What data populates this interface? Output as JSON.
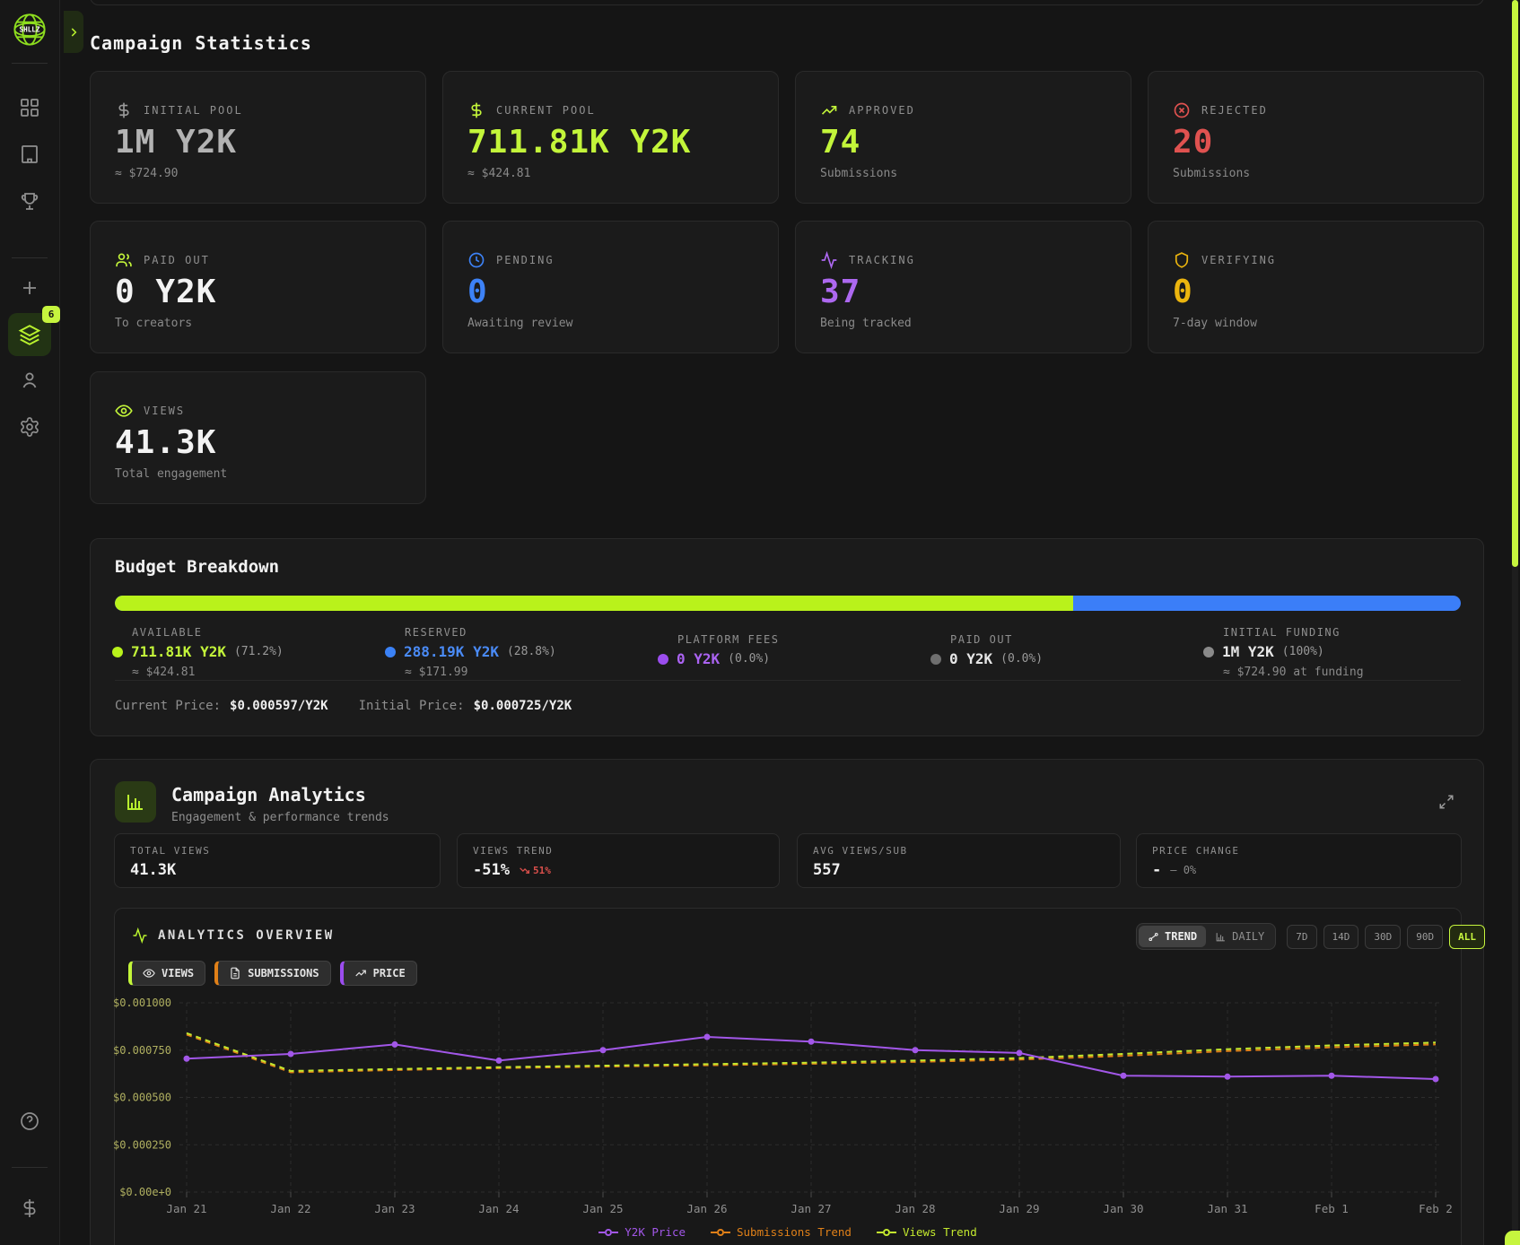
{
  "app": {
    "logo_text": "SHLLZ",
    "badge_count": "6"
  },
  "page": {
    "title": "Campaign Statistics"
  },
  "stats": [
    {
      "label": "INITIAL POOL",
      "value": "1M Y2K",
      "sub": "≈ $724.90",
      "value_color": "#b3b3b3",
      "icon_color": "#9a9a9a"
    },
    {
      "label": "CURRENT POOL",
      "value": "711.81K Y2K",
      "sub": "≈ $424.81",
      "value_color": "#c3f53a",
      "icon_color": "#c3f53a"
    },
    {
      "label": "APPROVED",
      "value": "74",
      "sub": "Submissions",
      "value_color": "#c3f53a",
      "icon_color": "#c3f53a"
    },
    {
      "label": "REJECTED",
      "value": "20",
      "sub": "Submissions",
      "value_color": "#e05250",
      "icon_color": "#e05250"
    },
    {
      "label": "PAID OUT",
      "value": "0 Y2K",
      "sub": "To creators",
      "value_color": "#f2f2f2",
      "icon_color": "#c3f53a"
    },
    {
      "label": "PENDING",
      "value": "0",
      "sub": "Awaiting review",
      "value_color": "#3d82f6",
      "icon_color": "#3d82f6"
    },
    {
      "label": "TRACKING",
      "value": "37",
      "sub": "Being tracked",
      "value_color": "#ad68f0",
      "icon_color": "#ad68f0"
    },
    {
      "label": "VERIFYING",
      "value": "0",
      "sub": "7-day window",
      "value_color": "#ecb50e",
      "icon_color": "#ecb50e"
    },
    {
      "label": "VIEWS",
      "value": "41.3K",
      "sub": "Total engagement",
      "value_color": "#f2f2f2",
      "icon_color": "#c3f53a"
    }
  ],
  "budget": {
    "title": "Budget Breakdown",
    "bar": {
      "available_pct_css": "71.2%",
      "available_color": "#b9f21b",
      "reserved_color": "#3b7ef8"
    },
    "legend": [
      {
        "label": "AVAILABLE",
        "value": "711.81K Y2K",
        "pct": "(71.2%)",
        "approx": "≈ $424.81",
        "color": "#b9f21b",
        "value_color": "#c3f53a"
      },
      {
        "label": "RESERVED",
        "value": "288.19K Y2K",
        "pct": "(28.8%)",
        "approx": "≈ $171.99",
        "color": "#3b82f6",
        "value_color": "#4a8bf7"
      },
      {
        "label": "PLATFORM FEES",
        "value": "0 Y2K",
        "pct": "(0.0%)",
        "approx": "",
        "color": "#9b4dee",
        "value_color": "#ab63f2"
      },
      {
        "label": "PAID OUT",
        "value": "0 Y2K",
        "pct": "(0.0%)",
        "approx": "",
        "color": "#6f6f6f",
        "value_color": "#e6e6e6"
      },
      {
        "label": "INITIAL FUNDING",
        "value": "1M Y2K",
        "pct": "(100%)",
        "approx": "≈ $724.90 at funding",
        "color": "#8a8a8a",
        "value_color": "#e6e6e6"
      }
    ],
    "current_price_label": "Current Price:",
    "current_price": "$0.000597/Y2K",
    "initial_price_label": "Initial Price:",
    "initial_price": "$0.000725/Y2K"
  },
  "analytics": {
    "title": "Campaign Analytics",
    "subtitle": "Engagement & performance trends",
    "boxes": [
      {
        "label": "TOTAL VIEWS",
        "value": "41.3K"
      },
      {
        "label": "VIEWS TREND",
        "value": "-51%",
        "badge": "51%"
      },
      {
        "label": "AVG VIEWS/SUB",
        "value": "557"
      },
      {
        "label": "PRICE CHANGE",
        "value": "-",
        "badge": "— 0%"
      }
    ],
    "overview_label": "ANALYTICS OVERVIEW",
    "modes": [
      {
        "label": "TREND"
      },
      {
        "label": "DAILY"
      }
    ],
    "active_mode": "TREND",
    "ranges": [
      "7D",
      "14D",
      "30D",
      "90D",
      "ALL"
    ],
    "active_range": "ALL",
    "toggles": [
      {
        "label": "VIEWS",
        "color": "#c3f53a"
      },
      {
        "label": "SUBMISSIONS",
        "color": "#e08018"
      },
      {
        "label": "PRICE",
        "color": "#9b4dee"
      }
    ]
  },
  "chart_data": {
    "type": "line",
    "x": [
      "Jan 21",
      "Jan 22",
      "Jan 23",
      "Jan 24",
      "Jan 25",
      "Jan 26",
      "Jan 27",
      "Jan 28",
      "Jan 29",
      "Jan 30",
      "Jan 31",
      "Feb 1",
      "Feb 2"
    ],
    "ylim": [
      0,
      0.001
    ],
    "grid": true,
    "legend_position": "bottom",
    "yticks": [
      {
        "value": 0.001,
        "label": "$0.001000"
      },
      {
        "value": 0.00075,
        "label": "$0.000750"
      },
      {
        "value": 0.0005,
        "label": "$0.000500"
      },
      {
        "value": 0.00025,
        "label": "$0.000250"
      },
      {
        "value": 0,
        "label": "$0.00e+0"
      }
    ],
    "series": [
      {
        "name": "Y2K Price",
        "color": "#a257e8",
        "style": "solid",
        "points": true,
        "values": [
          0.000705,
          0.00073,
          0.00078,
          0.000695,
          0.00075,
          0.00082,
          0.000795,
          0.00075,
          0.000735,
          0.000615,
          0.00061,
          0.000615,
          0.000597
        ]
      },
      {
        "name": "Submissions Trend",
        "color": "#e08018",
        "style": "dashed",
        "points": false,
        "values": [
          0.000832,
          0.000633,
          0.000645,
          0.000655,
          0.000663,
          0.00067,
          0.000678,
          0.000688,
          0.0007,
          0.00072,
          0.000745,
          0.000765,
          0.00078
        ]
      },
      {
        "name": "Views Trend",
        "color": "#c3e82e",
        "style": "dashed",
        "points": false,
        "values": [
          0.00084,
          0.00064,
          0.00065,
          0.00066,
          0.000668,
          0.000676,
          0.000684,
          0.000695,
          0.000708,
          0.00073,
          0.000755,
          0.000775,
          0.00079
        ]
      }
    ]
  }
}
